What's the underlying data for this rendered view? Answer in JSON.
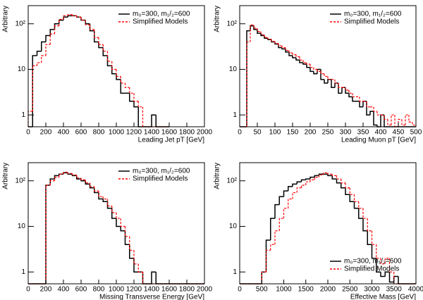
{
  "chart_data": [
    {
      "type": "histogram",
      "xlabel": "Leading Jet pT [GeV]",
      "ylabel": "Arbitrary",
      "log_y": true,
      "legend": "upper right",
      "xlim": [
        0,
        2000
      ],
      "xticks": [
        0,
        200,
        400,
        600,
        800,
        1000,
        1200,
        1400,
        1600,
        1800,
        2000
      ],
      "ylim": [
        0.55,
        250
      ],
      "yticks": [
        1,
        10,
        {
          "value": 100,
          "label": "10²"
        }
      ],
      "bins": [
        0,
        50,
        100,
        150,
        200,
        250,
        300,
        350,
        400,
        450,
        500,
        550,
        600,
        650,
        700,
        750,
        800,
        850,
        900,
        950,
        1000,
        1050,
        1100,
        1150,
        1200,
        1250,
        1300,
        1350,
        1400,
        1450,
        1500,
        1550,
        1600
      ],
      "series": [
        {
          "name": "m₀=300, m₁/₂=600",
          "color": "#000000",
          "linestyle": "solid",
          "values": [
            0,
            20,
            25,
            40,
            55,
            75,
            100,
            120,
            140,
            150,
            150,
            140,
            120,
            100,
            70,
            40,
            30,
            20,
            12,
            8,
            6,
            3,
            3,
            2,
            1.5,
            0,
            0,
            0,
            1,
            0,
            0,
            0
          ]
        },
        {
          "name": "Simplified Models",
          "color": "#ff0000",
          "linestyle": "dashed",
          "values": [
            1.2,
            12,
            14,
            20,
            35,
            60,
            90,
            125,
            150,
            160,
            150,
            140,
            120,
            95,
            75,
            50,
            35,
            25,
            15,
            10,
            7,
            5,
            4,
            3,
            2,
            1.5,
            0,
            0,
            0,
            0,
            0,
            0
          ]
        }
      ]
    },
    {
      "type": "histogram",
      "xlabel": "Leading Muon pT [GeV]",
      "ylabel": "Arbitrary",
      "log_y": true,
      "legend": "upper right",
      "xlim": [
        0,
        500
      ],
      "xticks": [
        0,
        50,
        100,
        150,
        200,
        250,
        300,
        350,
        400,
        450,
        500
      ],
      "ylim": [
        0.55,
        250
      ],
      "yticks": [
        1,
        10,
        {
          "value": 100,
          "label": "10²"
        }
      ],
      "bins": [
        0,
        10,
        20,
        30,
        40,
        50,
        60,
        70,
        80,
        90,
        100,
        110,
        120,
        130,
        140,
        150,
        160,
        170,
        180,
        190,
        200,
        210,
        220,
        230,
        240,
        250,
        260,
        270,
        280,
        290,
        300,
        310,
        320,
        330,
        340,
        350,
        360,
        370,
        380,
        390,
        400,
        410,
        420,
        430,
        440,
        450,
        460,
        470,
        480,
        490,
        500
      ],
      "series": [
        {
          "name": "m₀=300, m₁/₂=600",
          "color": "#000000",
          "linestyle": "solid",
          "values": [
            0,
            0,
            70,
            90,
            75,
            62,
            55,
            48,
            45,
            40,
            36,
            30,
            28,
            24,
            20,
            18,
            16,
            14,
            13,
            11,
            9,
            8,
            10,
            6,
            5,
            6,
            4,
            5,
            3,
            4,
            3,
            2.5,
            2,
            2,
            1.5,
            2,
            1,
            1.2,
            0.6,
            0,
            1,
            0,
            0,
            0,
            0,
            0,
            0,
            0,
            0,
            0
          ]
        },
        {
          "name": "Simplified Models",
          "color": "#ff0000",
          "linestyle": "dashed",
          "values": [
            0,
            0,
            40,
            95,
            80,
            68,
            58,
            50,
            46,
            41,
            37,
            33,
            30,
            26,
            23,
            21,
            19,
            16,
            14,
            13,
            11,
            10,
            9,
            8,
            7,
            6,
            6,
            5,
            4,
            4,
            3.5,
            3,
            2.5,
            2.5,
            2,
            2,
            1.5,
            1.5,
            1.2,
            1,
            1,
            0.8,
            0.6,
            1,
            0.5,
            0.8,
            0.6,
            1,
            0.7,
            0.6
          ]
        }
      ]
    },
    {
      "type": "histogram",
      "xlabel": "Missing Transverse Energy [GeV]",
      "ylabel": "Arbitrary",
      "log_y": true,
      "legend": "upper right",
      "xlim": [
        0,
        2000
      ],
      "xticks": [
        0,
        200,
        400,
        600,
        800,
        1000,
        1200,
        1400,
        1600,
        1800,
        2000
      ],
      "ylim": [
        0.55,
        250
      ],
      "yticks": [
        1,
        10,
        {
          "value": 100,
          "label": "10²"
        }
      ],
      "bins": [
        0,
        50,
        100,
        150,
        200,
        250,
        300,
        350,
        400,
        450,
        500,
        550,
        600,
        650,
        700,
        750,
        800,
        850,
        900,
        950,
        1000,
        1050,
        1100,
        1150,
        1200,
        1250,
        1300,
        1350,
        1400,
        1450,
        1500,
        1550,
        1600,
        1650,
        1700,
        1750,
        1800,
        1850,
        1900,
        1950,
        2000
      ],
      "series": [
        {
          "name": "m₀=300, m₁/₂=600",
          "color": "#000000",
          "linestyle": "solid",
          "values": [
            0,
            0,
            0,
            0,
            80,
            110,
            130,
            140,
            150,
            140,
            130,
            110,
            100,
            85,
            70,
            55,
            40,
            35,
            25,
            15,
            10,
            8,
            4,
            2,
            1,
            1,
            0,
            0,
            1,
            0,
            0,
            0,
            0,
            0,
            0,
            0,
            0,
            0,
            0,
            0
          ]
        },
        {
          "name": "Simplified Models",
          "color": "#ff0000",
          "linestyle": "dashed",
          "values": [
            0,
            0,
            0,
            0,
            80,
            100,
            120,
            140,
            155,
            145,
            135,
            115,
            105,
            90,
            75,
            60,
            45,
            40,
            28,
            20,
            15,
            10,
            6,
            3,
            1.5,
            1,
            0,
            0,
            0,
            0,
            0,
            0,
            0,
            0,
            0,
            0,
            0,
            0,
            0,
            0
          ]
        }
      ]
    },
    {
      "type": "histogram",
      "xlabel": "Effective Mass [GeV]",
      "ylabel": "Arbitrary",
      "log_y": true,
      "legend": "lower right",
      "xlim": [
        0,
        4000
      ],
      "xticks": [
        0,
        500,
        1000,
        1500,
        2000,
        2500,
        3000,
        3500,
        4000
      ],
      "ylim": [
        0.55,
        250
      ],
      "yticks": [
        1,
        10,
        {
          "value": 100,
          "label": "10²"
        }
      ],
      "bins": [
        0,
        100,
        200,
        300,
        400,
        500,
        600,
        700,
        800,
        900,
        1000,
        1100,
        1200,
        1300,
        1400,
        1500,
        1600,
        1700,
        1800,
        1900,
        2000,
        2100,
        2200,
        2300,
        2400,
        2500,
        2600,
        2700,
        2800,
        2900,
        3000,
        3100,
        3200,
        3300,
        3400,
        3500,
        3600,
        3700,
        3800,
        3900,
        4000
      ],
      "series": [
        {
          "name": "m₀=300, m₁/₂=600",
          "color": "#000000",
          "linestyle": "solid",
          "values": [
            0,
            0,
            0,
            0,
            0,
            1,
            5,
            15,
            30,
            45,
            60,
            75,
            85,
            95,
            105,
            110,
            120,
            130,
            140,
            140,
            130,
            110,
            90,
            70,
            50,
            35,
            25,
            15,
            8,
            4,
            2,
            1,
            0.8,
            1,
            0.6,
            0.8,
            0,
            0,
            0,
            0
          ]
        },
        {
          "name": "Simplified Models",
          "color": "#ff0000",
          "linestyle": "dashed",
          "values": [
            0,
            0,
            0,
            0,
            0,
            1,
            3,
            4,
            8,
            15,
            25,
            40,
            55,
            70,
            80,
            95,
            105,
            120,
            135,
            150,
            140,
            130,
            110,
            90,
            70,
            50,
            35,
            25,
            15,
            8,
            4,
            2,
            1.5,
            2,
            1,
            0,
            0,
            0,
            0,
            0
          ]
        }
      ]
    }
  ]
}
